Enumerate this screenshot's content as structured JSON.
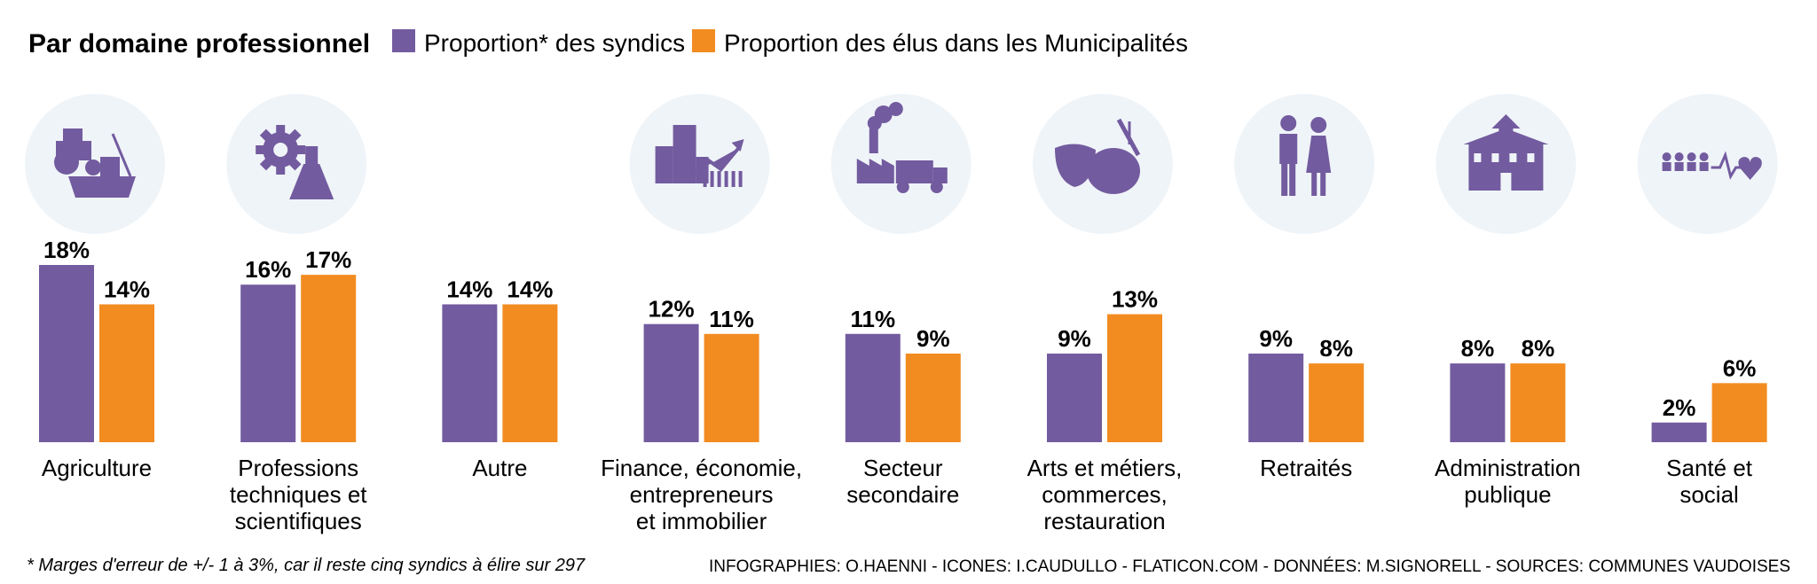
{
  "colors": {
    "syndics": "#735b9f",
    "elus": "#f28c21",
    "icon": "#735b9f",
    "icon_bg": "#eff4f8"
  },
  "chart_data": {
    "type": "bar",
    "title": "Par domaine professionnel",
    "value_suffix": "%",
    "categories": [
      "Agriculture",
      "Professions techniques et scientifiques",
      "Autre",
      "Finance, économie, entrepreneurs et immobilier",
      "Secteur secondaire",
      "Arts et métiers, commerces, restauration",
      "Retraités",
      "Administration publique",
      "Santé et social"
    ],
    "category_lines": [
      [
        "Agriculture"
      ],
      [
        "Professions",
        "techniques et",
        "scientifiques"
      ],
      [
        "Autre"
      ],
      [
        "Finance, économie,",
        "entrepreneurs",
        "et immobilier"
      ],
      [
        "Secteur",
        "secondaire"
      ],
      [
        "Arts et métiers,",
        "commerces,",
        "restauration"
      ],
      [
        "Retraités"
      ],
      [
        "Administration",
        "publique"
      ],
      [
        "Santé et",
        "social"
      ]
    ],
    "icons": [
      "tractor-boat-icon",
      "gear-flask-icon",
      "",
      "buildings-growth-chart-icon",
      "factory-truck-icon",
      "theater-masks-palette-icon",
      "retired-couple-icon",
      "public-building-icon",
      "people-heartbeat-icon"
    ],
    "series": [
      {
        "name": "Proportion* des syndics",
        "values": [
          18,
          16,
          14,
          12,
          11,
          9,
          9,
          8,
          2
        ]
      },
      {
        "name": "Proportion des élus dans les Municipalités",
        "values": [
          14,
          17,
          14,
          11,
          9,
          13,
          8,
          8,
          6
        ]
      }
    ],
    "ylim": [
      0,
      18
    ],
    "legend_position": "top",
    "grid": false
  },
  "footer": {
    "note": "* Marges d'erreur de +/- 1 à 3%, car il reste cinq syndics à élire sur 297",
    "credits": "INFOGRAPHIES: O.HAENNI - ICONES: I.CAUDULLO - FLATICON.COM - DONNÉES: M.SIGNORELL - SOURCES: COMMUNES VAUDOISES"
  }
}
